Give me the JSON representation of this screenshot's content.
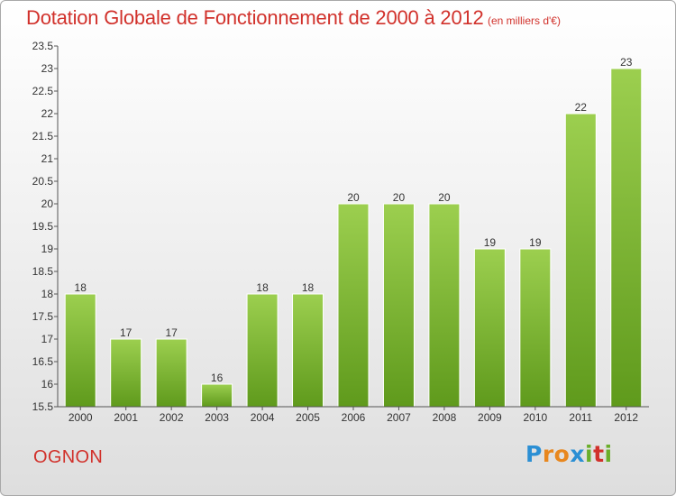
{
  "header": {
    "title": "Dotation Globale de Fonctionnement de 2000 à 2012",
    "subtitle": "(en milliers d'€)"
  },
  "footer": {
    "commune": "OGNON",
    "logo_letters": [
      "P",
      "r",
      "o",
      "x",
      "i",
      "t",
      "i"
    ],
    "logo_colors": [
      "#2b8fd4",
      "#e8871e",
      "#e8871e",
      "#2b8fd4",
      "#6aae2a",
      "#d1312b",
      "#6aae2a"
    ]
  },
  "colors": {
    "title": "#d1312b",
    "bar_top": "#9ccf4f",
    "bar_bottom": "#5f9a1c"
  },
  "chart_data": {
    "type": "bar",
    "title": "Dotation Globale de Fonctionnement de 2000 à 2012",
    "subtitle": "(en milliers d'€)",
    "categories": [
      "2000",
      "2001",
      "2002",
      "2003",
      "2004",
      "2005",
      "2006",
      "2007",
      "2008",
      "2009",
      "2010",
      "2011",
      "2012"
    ],
    "values": [
      18,
      17,
      17,
      16,
      18,
      18,
      20,
      20,
      20,
      19,
      19,
      22,
      23
    ],
    "value_labels": [
      "18",
      "17",
      "17",
      "16",
      "18",
      "18",
      "20",
      "20",
      "20",
      "19",
      "19",
      "22",
      "23"
    ],
    "ylim": [
      15.5,
      23.5
    ],
    "yticks": [
      "15.5",
      "16",
      "16.5",
      "17",
      "17.5",
      "18",
      "18.5",
      "19",
      "19.5",
      "20",
      "20.5",
      "21",
      "21.5",
      "22",
      "22.5",
      "23",
      "23.5"
    ],
    "xlabel": "",
    "ylabel": "",
    "grid": false,
    "legend": "none"
  }
}
